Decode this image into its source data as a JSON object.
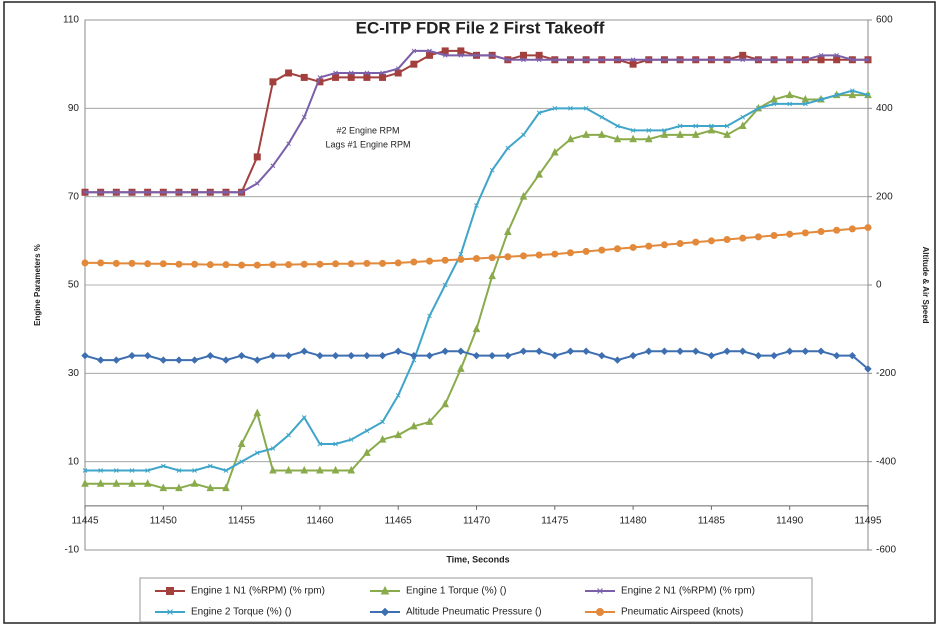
{
  "chart_data": {
    "type": "line",
    "title": "EC-ITP   FDR File 2   First Takeoff",
    "xlabel": "Time, Seconds",
    "ylabel": "Engine Parameters %",
    "y2label": "Altitude & Air Speed",
    "annotations": [
      "#2 Engine RPM",
      "Lags #1 Engine RPM"
    ],
    "x": [
      11445,
      11446,
      11447,
      11448,
      11449,
      11450,
      11451,
      11452,
      11453,
      11454,
      11455,
      11456,
      11457,
      11458,
      11459,
      11460,
      11461,
      11462,
      11463,
      11464,
      11465,
      11466,
      11467,
      11468,
      11469,
      11470,
      11471,
      11472,
      11473,
      11474,
      11475,
      11476,
      11477,
      11478,
      11479,
      11480,
      11481,
      11482,
      11483,
      11484,
      11485,
      11486,
      11487,
      11488,
      11489,
      11490,
      11491,
      11492,
      11493,
      11494,
      11495
    ],
    "xlim": [
      11445,
      11495
    ],
    "xticks": [
      11445,
      11450,
      11455,
      11460,
      11465,
      11470,
      11475,
      11480,
      11485,
      11490,
      11495
    ],
    "ylim": [
      -10,
      110
    ],
    "yticks": [
      -10,
      10,
      30,
      50,
      70,
      90,
      110
    ],
    "y2lim": [
      -600,
      600
    ],
    "y2ticks": [
      -600,
      -400,
      -200,
      0,
      200,
      400,
      600
    ],
    "grid": true,
    "legend": "bottom",
    "series": [
      {
        "name": "Engine 1 N1 (%RPM) (% rpm)",
        "color": "#a3403e",
        "marker": "square",
        "values": [
          71,
          71,
          71,
          71,
          71,
          71,
          71,
          71,
          71,
          71,
          71,
          79,
          96,
          98,
          97,
          96,
          97,
          97,
          97,
          97,
          98,
          100,
          102,
          103,
          103,
          102,
          102,
          101,
          102,
          102,
          101,
          101,
          101,
          101,
          101,
          100,
          101,
          101,
          101,
          101,
          101,
          101,
          102,
          101,
          101,
          101,
          101,
          101,
          101,
          101,
          101
        ]
      },
      {
        "name": "Engine 1 Torque (%) ()",
        "color": "#8aab4c",
        "marker": "triangle",
        "values": [
          5,
          5,
          5,
          5,
          5,
          4,
          4,
          5,
          4,
          4,
          14,
          21,
          8,
          8,
          8,
          8,
          8,
          8,
          12,
          15,
          16,
          18,
          19,
          23,
          31,
          40,
          52,
          62,
          70,
          75,
          80,
          83,
          84,
          84,
          83,
          83,
          83,
          84,
          84,
          84,
          85,
          84,
          86,
          90,
          92,
          93,
          92,
          92,
          93,
          93,
          93
        ]
      },
      {
        "name": "Engine 2 N1 (%RPM) (% rpm)",
        "color": "#7b5fa9",
        "marker": "cross",
        "values": [
          71,
          71,
          71,
          71,
          71,
          71,
          71,
          71,
          71,
          71,
          71,
          73,
          77,
          82,
          88,
          97,
          98,
          98,
          98,
          98,
          99,
          103,
          103,
          102,
          102,
          102,
          102,
          101,
          101,
          101,
          101,
          101,
          101,
          101,
          101,
          101,
          101,
          101,
          101,
          101,
          101,
          101,
          101,
          101,
          101,
          101,
          101,
          102,
          102,
          101,
          101
        ]
      },
      {
        "name": "Engine 2 Torque (%) ()",
        "color": "#3fa5c9",
        "marker": "cross",
        "values": [
          8,
          8,
          8,
          8,
          8,
          9,
          8,
          8,
          9,
          8,
          10,
          12,
          13,
          16,
          20,
          14,
          14,
          15,
          17,
          19,
          25,
          33,
          43,
          50,
          57,
          68,
          76,
          81,
          84,
          89,
          90,
          90,
          90,
          88,
          86,
          85,
          85,
          85,
          86,
          86,
          86,
          86,
          88,
          90,
          91,
          91,
          91,
          92,
          93,
          94,
          93
        ]
      },
      {
        "name": "Altitude Pneumatic Pressure ()",
        "color": "#3d6fb1",
        "marker": "diamond",
        "axis": "y2",
        "values": [
          -160,
          -170,
          -170,
          -160,
          -160,
          -170,
          -170,
          -170,
          -160,
          -170,
          -160,
          -170,
          -160,
          -160,
          -150,
          -160,
          -160,
          -160,
          -160,
          -160,
          -150,
          -160,
          -160,
          -150,
          -150,
          -160,
          -160,
          -160,
          -150,
          -150,
          -160,
          -150,
          -150,
          -160,
          -170,
          -160,
          -150,
          -150,
          -150,
          -150,
          -160,
          -150,
          -150,
          -160,
          -160,
          -150,
          -150,
          -150,
          -160,
          -160,
          -190
        ]
      },
      {
        "name": "Pneumatic Airspeed (knots)",
        "color": "#e2893b",
        "marker": "circle",
        "axis": "y2",
        "values": [
          50,
          50,
          49,
          49,
          48,
          48,
          47,
          47,
          46,
          46,
          45,
          45,
          46,
          46,
          47,
          47,
          48,
          48,
          49,
          49,
          50,
          52,
          54,
          56,
          58,
          60,
          62,
          64,
          66,
          68,
          70,
          73,
          76,
          79,
          82,
          85,
          88,
          91,
          94,
          97,
          100,
          103,
          106,
          109,
          112,
          115,
          118,
          121,
          124,
          127,
          130
        ]
      }
    ]
  }
}
